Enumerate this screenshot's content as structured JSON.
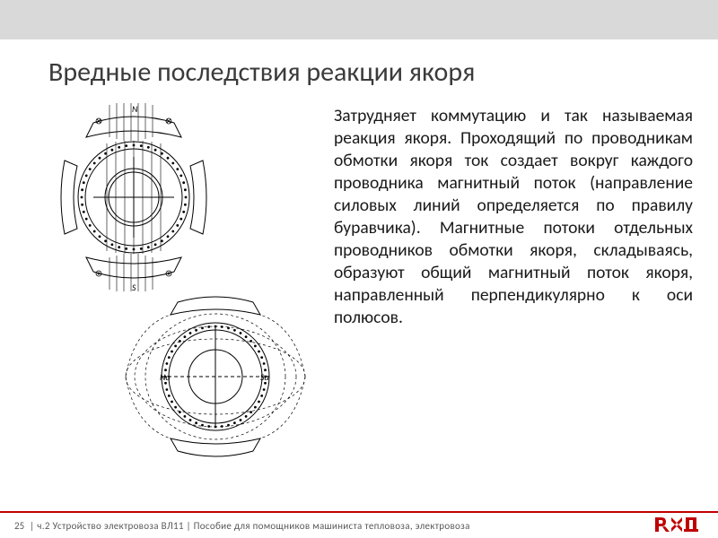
{
  "header": {
    "title": "Вредные последствия реакции якоря"
  },
  "body": {
    "paragraph": "Затрудняет коммутацию и так называемая реакция якоря. Проходящий по проводникам обмотки якоря ток создает вокруг каждого проводника магнитный поток (направление силовых линий определяется по правилу буравчика). Магнитные потоки отдельных проводников обмотки якоря, складываясь, образуют общий магнитный поток якоря, направленный пер­пендикулярно к оси полюсов."
  },
  "diagram": {
    "label_N": "N",
    "label_S": "S",
    "label_Na": "Nа",
    "label_Sa": "Sа",
    "stroke": "#000000",
    "hatch": "#555555"
  },
  "footer": {
    "page": "25",
    "text": "| ч.2  Устройство электровоза ВЛ11  | Пособие для помощников машиниста тепловоза, электровоза",
    "logo_text": "РЖД",
    "logo_color": "#c00000"
  },
  "style": {
    "header_bg": "#d9d9d9",
    "title_color": "#3b3b3b",
    "title_fontsize": 30,
    "body_fontsize": 19.5,
    "footer_fontsize": 11,
    "accent": "#c00000"
  }
}
